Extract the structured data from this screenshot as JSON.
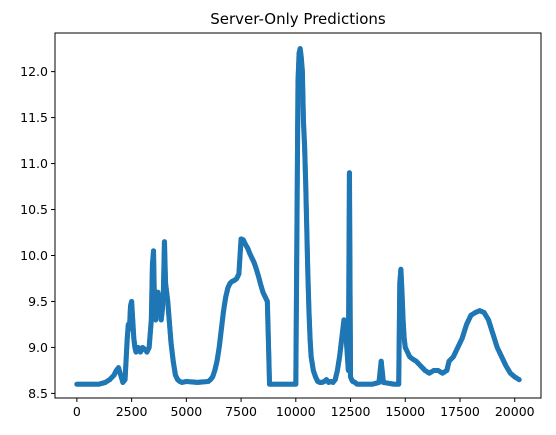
{
  "chart_data": {
    "type": "scatter",
    "title": "Server-Only Predictions",
    "xlabel": "",
    "ylabel": "",
    "xlim": [
      -1000,
      21200
    ],
    "ylim": [
      8.45,
      12.42
    ],
    "xticks": [
      0,
      2500,
      5000,
      7500,
      10000,
      12500,
      15000,
      17500,
      20000
    ],
    "yticks": [
      8.5,
      9.0,
      9.5,
      10.0,
      10.5,
      11.0,
      11.5,
      12.0
    ],
    "xtick_labels": [
      "0",
      "2500",
      "5000",
      "7500",
      "10000",
      "12500",
      "15000",
      "17500",
      "20000"
    ],
    "ytick_labels": [
      "8.5",
      "9.0",
      "9.5",
      "10.0",
      "10.5",
      "11.0",
      "11.5",
      "12.0"
    ],
    "grid": false,
    "marker_color": "#1f77b4",
    "series": [
      {
        "x": [
          0,
          500,
          1000,
          1300,
          1500,
          1700,
          1800,
          1900,
          2000,
          2100,
          2200,
          2300,
          2350,
          2400,
          2450,
          2500,
          2550,
          2600,
          2650,
          2700,
          2800,
          2900,
          3000,
          3100,
          3200,
          3300,
          3400,
          3450,
          3500,
          3550,
          3600,
          3650,
          3700,
          3750,
          3800,
          3850,
          3900,
          3950,
          4000,
          4050,
          4100,
          4150,
          4200,
          4250,
          4300,
          4400,
          4500,
          4600,
          4700,
          4800,
          5000,
          5500,
          6000,
          6100,
          6200,
          6300,
          6400,
          6500,
          6600,
          6700,
          6800,
          6900,
          7000,
          7100,
          7200,
          7300,
          7400,
          7500,
          7600,
          7700,
          7800,
          7900,
          8000,
          8100,
          8200,
          8300,
          8400,
          8500,
          8600,
          8700,
          8800,
          9000,
          9500,
          10000,
          10100,
          10150,
          10200,
          10250,
          10300,
          10350,
          10400,
          10450,
          10500,
          10550,
          10600,
          10650,
          10700,
          10800,
          10900,
          11000,
          11100,
          11200,
          11300,
          11400,
          11500,
          11600,
          11700,
          11800,
          11900,
          12000,
          12100,
          12200,
          12300,
          12400,
          12450,
          12500,
          12550,
          12600,
          12700,
          12800,
          13000,
          13500,
          13800,
          13900,
          14000,
          14500,
          14700,
          14750,
          14800,
          14850,
          14900,
          14950,
          15000,
          15100,
          15200,
          15300,
          15500,
          15700,
          15900,
          16100,
          16300,
          16500,
          16700,
          16900,
          17000,
          17200,
          17400,
          17600,
          17800,
          18000,
          18200,
          18400,
          18600,
          18800,
          19000,
          19200,
          19400,
          19600,
          19800,
          20000,
          20200
        ],
        "y": [
          8.6,
          8.6,
          8.6,
          8.62,
          8.65,
          8.7,
          8.75,
          8.78,
          8.7,
          8.62,
          8.65,
          9.1,
          9.25,
          9.2,
          9.45,
          9.5,
          9.3,
          9.1,
          9.0,
          8.95,
          9.0,
          8.95,
          9.0,
          8.98,
          8.95,
          9.0,
          9.3,
          9.9,
          10.05,
          9.4,
          9.3,
          9.5,
          9.6,
          9.55,
          9.45,
          9.3,
          9.4,
          9.6,
          10.15,
          9.7,
          9.6,
          9.5,
          9.35,
          9.2,
          9.05,
          8.85,
          8.7,
          8.65,
          8.63,
          8.62,
          8.63,
          8.62,
          8.63,
          8.65,
          8.68,
          8.75,
          8.85,
          9.0,
          9.2,
          9.4,
          9.55,
          9.65,
          9.7,
          9.72,
          9.73,
          9.75,
          9.8,
          10.18,
          10.17,
          10.12,
          10.08,
          10.02,
          9.97,
          9.92,
          9.85,
          9.77,
          9.68,
          9.6,
          9.55,
          9.5,
          8.6,
          8.6,
          8.6,
          8.6,
          11.9,
          12.2,
          12.25,
          12.15,
          12.0,
          11.45,
          11.2,
          10.8,
          10.3,
          9.8,
          9.4,
          9.1,
          8.9,
          8.75,
          8.68,
          8.63,
          8.62,
          8.62,
          8.63,
          8.65,
          8.62,
          8.63,
          8.62,
          8.65,
          8.75,
          8.9,
          9.1,
          9.3,
          9.1,
          8.75,
          10.9,
          8.68,
          8.65,
          8.63,
          8.62,
          8.6,
          8.6,
          8.6,
          8.62,
          8.85,
          8.62,
          8.6,
          8.6,
          9.7,
          9.85,
          9.6,
          9.3,
          9.1,
          9.0,
          8.95,
          8.9,
          8.88,
          8.85,
          8.8,
          8.75,
          8.72,
          8.75,
          8.75,
          8.72,
          8.75,
          8.85,
          8.9,
          9.0,
          9.1,
          9.25,
          9.35,
          9.38,
          9.4,
          9.38,
          9.3,
          9.15,
          9.0,
          8.9,
          8.8,
          8.72,
          8.68,
          8.65
        ]
      }
    ]
  }
}
